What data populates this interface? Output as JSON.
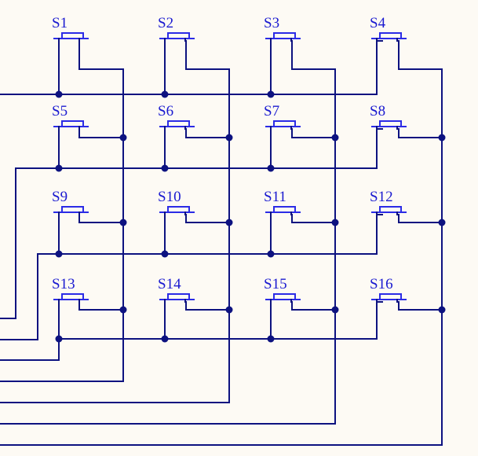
{
  "colors": {
    "background": "#fdfaf4",
    "wire": "#0d1280",
    "switch": "#2b2be6",
    "label": "#1a1ad0"
  },
  "switches": [
    {
      "label": "S1"
    },
    {
      "label": "S2"
    },
    {
      "label": "S3"
    },
    {
      "label": "S4"
    },
    {
      "label": "S5"
    },
    {
      "label": "S6"
    },
    {
      "label": "S7"
    },
    {
      "label": "S8"
    },
    {
      "label": "S9"
    },
    {
      "label": "S10"
    },
    {
      "label": "S11"
    },
    {
      "label": "S12"
    },
    {
      "label": "S13"
    },
    {
      "label": "S14"
    },
    {
      "label": "S15"
    },
    {
      "label": "S16"
    }
  ],
  "grid": {
    "rows": 4,
    "columns": 4
  }
}
